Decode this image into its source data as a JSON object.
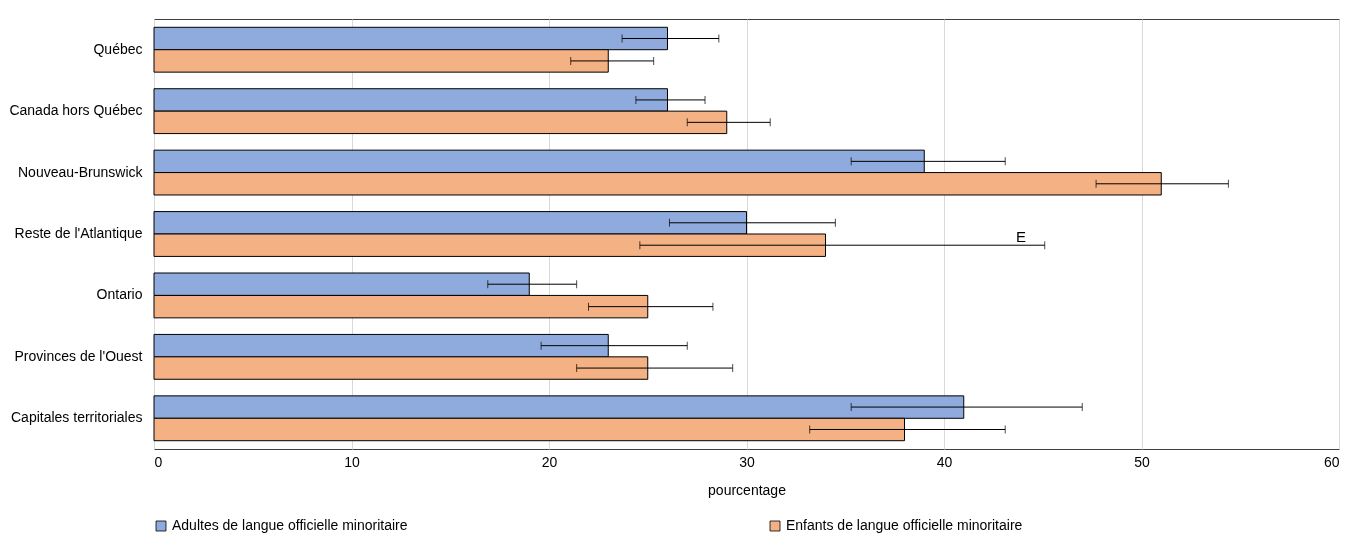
{
  "chart_data": {
    "type": "bar",
    "orientation": "horizontal",
    "xlabel": "pourcentage",
    "categories": [
      "Québec",
      "Canada hors Québec",
      "Nouveau-Brunswick",
      "Reste de l'Atlantique",
      "Ontario",
      "Provinces de l'Ouest",
      "Capitales territoriales"
    ],
    "series": [
      {
        "name": "Adultes de langue officielle minoritaire",
        "color": "#8faadc",
        "values": [
          26,
          26,
          39,
          30,
          19,
          23,
          41
        ],
        "errors": [
          [
            23.7,
            28.6
          ],
          [
            24.4,
            27.9
          ],
          [
            35.3,
            43.1
          ],
          [
            26.1,
            34.5
          ],
          [
            16.9,
            21.4
          ],
          [
            19.6,
            27.0
          ],
          [
            35.3,
            47.0
          ]
        ]
      },
      {
        "name": "Enfants de langue officielle minoritaire",
        "color": "#f4b183",
        "values": [
          23,
          29,
          51,
          34,
          25,
          25,
          38
        ],
        "errors": [
          [
            21.1,
            25.3
          ],
          [
            27.0,
            31.2
          ],
          [
            47.7,
            54.4
          ],
          [
            24.6,
            45.1
          ],
          [
            22.0,
            28.3
          ],
          [
            21.4,
            29.3
          ],
          [
            33.2,
            43.1
          ]
        ]
      }
    ],
    "xlim": [
      0,
      60
    ],
    "xticks": [
      0,
      10,
      20,
      30,
      40,
      50,
      60
    ],
    "grid": "x",
    "legend": "bottom",
    "annotations": [
      "E"
    ]
  }
}
